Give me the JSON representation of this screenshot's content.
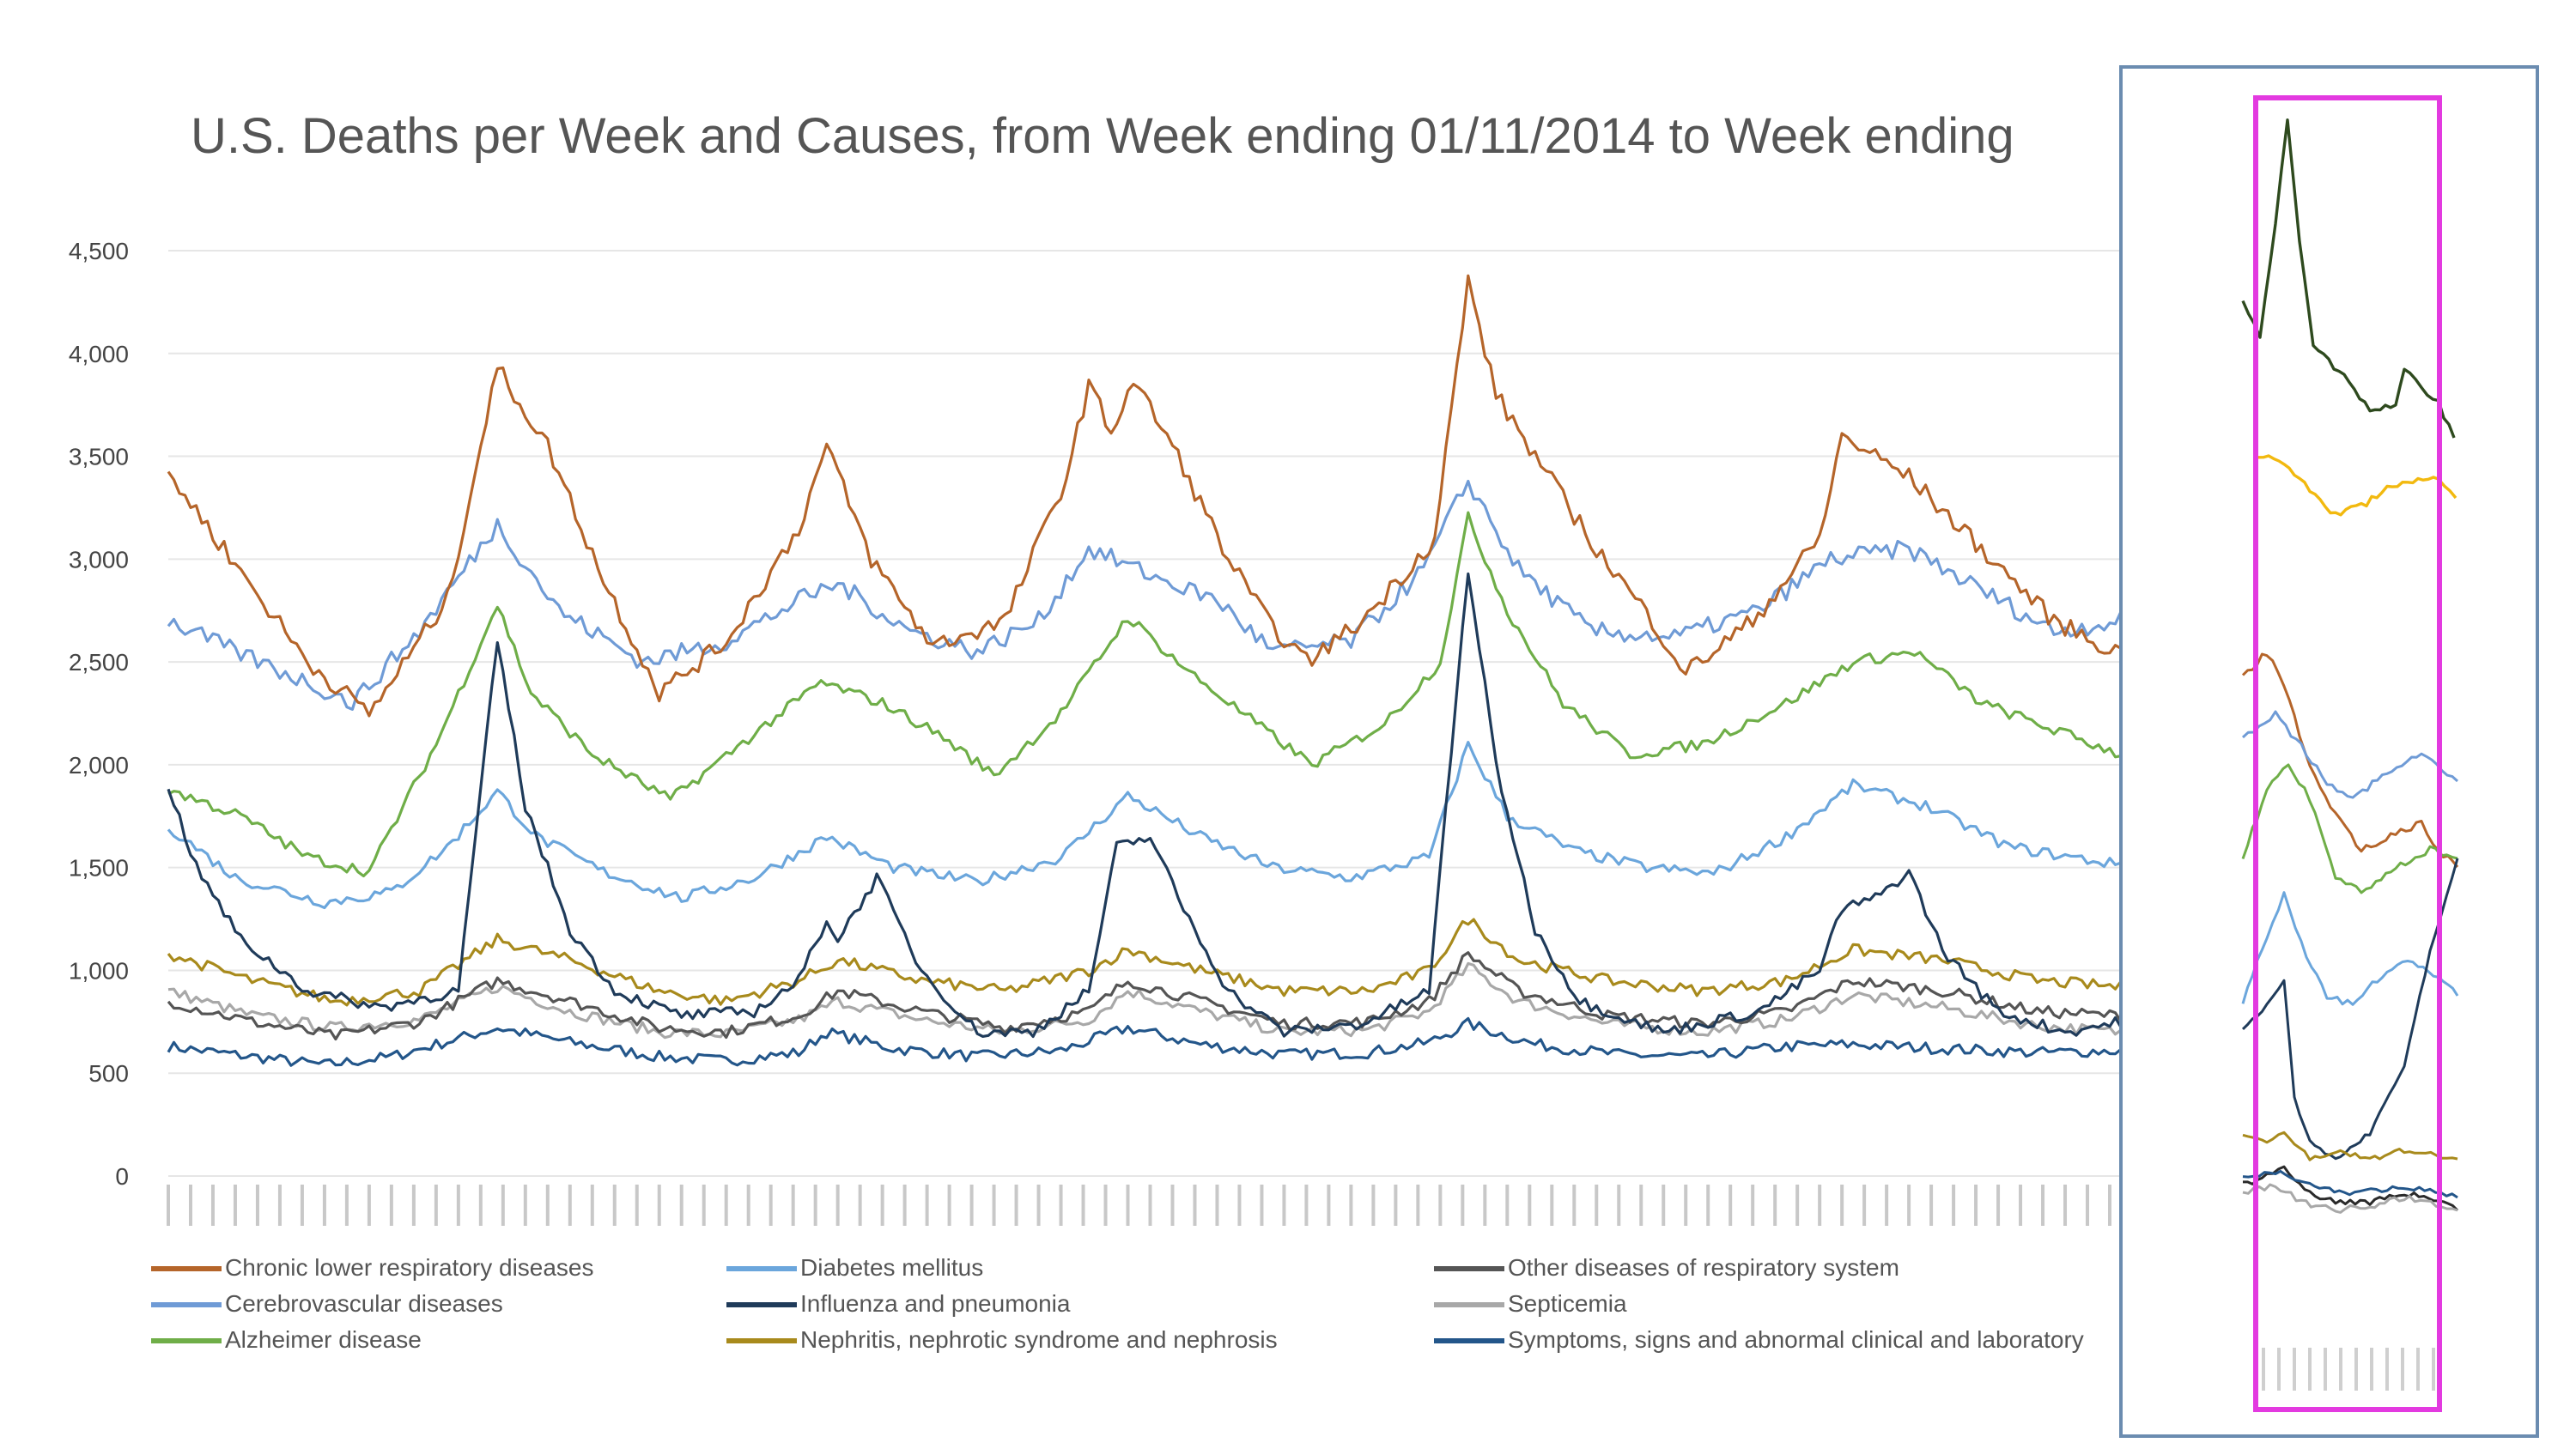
{
  "chart_data": {
    "type": "line",
    "title": "U.S. Deaths per Week and Causes, from Week ending 01/11/2014 to Week ending",
    "ylim": [
      0,
      4500
    ],
    "yticks": [
      0,
      500,
      1000,
      1500,
      2000,
      2500,
      3000,
      3500,
      4000,
      4500
    ],
    "ytick_labels": [
      "0",
      "500",
      "1,000",
      "1,500",
      "2,000",
      "2,500",
      "3,000",
      "3,500",
      "4,000",
      "4,500"
    ],
    "grid": true,
    "legend_position": "bottom",
    "colors": {
      "chronic": "#b5652a",
      "cerebro": "#6f9bd6",
      "alzheimer": "#6fae48",
      "diabetes": "#6ba6dc",
      "influenza": "#1f3b5a",
      "nephritis": "#a88a1c",
      "other_resp": "#555555",
      "septicemia": "#a8a8a8",
      "symptoms": "#23568a",
      "inset_green": "#2e4a1e",
      "inset_yellow": "#f2b90f",
      "highlight": "#e33ae0",
      "inset_frame": "#6b8cb0"
    },
    "series": [
      {
        "name": "Chronic lower respiratory diseases",
        "color": "#b5652a",
        "key_points": [
          [
            0,
            3420
          ],
          [
            13,
            2940
          ],
          [
            25,
            2500
          ],
          [
            36,
            2250
          ],
          [
            50,
            2800
          ],
          [
            59,
            3930
          ],
          [
            68,
            3550
          ],
          [
            78,
            2900
          ],
          [
            88,
            2350
          ],
          [
            100,
            2600
          ],
          [
            113,
            3150
          ],
          [
            118,
            3550
          ],
          [
            126,
            3000
          ],
          [
            137,
            2580
          ],
          [
            150,
            2700
          ],
          [
            161,
            3400
          ],
          [
            165,
            3850
          ],
          [
            169,
            3620
          ],
          [
            173,
            3870
          ],
          [
            180,
            3550
          ],
          [
            190,
            3000
          ],
          [
            197,
            2700
          ],
          [
            204,
            2500
          ],
          [
            214,
            2700
          ],
          [
            227,
            3100
          ],
          [
            233,
            4350
          ],
          [
            238,
            3800
          ],
          [
            245,
            3500
          ],
          [
            256,
            3050
          ],
          [
            266,
            2700
          ],
          [
            272,
            2450
          ],
          [
            284,
            2700
          ],
          [
            296,
            3100
          ],
          [
            300,
            3600
          ],
          [
            312,
            3400
          ],
          [
            325,
            3050
          ],
          [
            338,
            2700
          ],
          [
            349,
            2550
          ]
        ]
      },
      {
        "name": "Cerebrovascular diseases",
        "color": "#6f9bd6",
        "key_points": [
          [
            0,
            2700
          ],
          [
            12,
            2550
          ],
          [
            25,
            2400
          ],
          [
            33,
            2300
          ],
          [
            45,
            2650
          ],
          [
            59,
            3170
          ],
          [
            70,
            2750
          ],
          [
            85,
            2500
          ],
          [
            100,
            2600
          ],
          [
            113,
            2800
          ],
          [
            120,
            2880
          ],
          [
            133,
            2650
          ],
          [
            145,
            2550
          ],
          [
            156,
            2700
          ],
          [
            165,
            3050
          ],
          [
            178,
            2900
          ],
          [
            188,
            2800
          ],
          [
            198,
            2550
          ],
          [
            212,
            2600
          ],
          [
            225,
            2950
          ],
          [
            233,
            3380
          ],
          [
            242,
            2950
          ],
          [
            255,
            2650
          ],
          [
            270,
            2620
          ],
          [
            285,
            2750
          ],
          [
            298,
            3000
          ],
          [
            312,
            3050
          ],
          [
            325,
            2850
          ],
          [
            338,
            2650
          ],
          [
            350,
            2700
          ]
        ]
      },
      {
        "name": "Alzheimer disease",
        "color": "#6fae48",
        "key_points": [
          [
            0,
            1880
          ],
          [
            13,
            1750
          ],
          [
            25,
            1550
          ],
          [
            36,
            1480
          ],
          [
            48,
            2100
          ],
          [
            59,
            2780
          ],
          [
            65,
            2350
          ],
          [
            76,
            2050
          ],
          [
            90,
            1830
          ],
          [
            105,
            2150
          ],
          [
            117,
            2400
          ],
          [
            128,
            2300
          ],
          [
            138,
            2150
          ],
          [
            148,
            1950
          ],
          [
            160,
            2250
          ],
          [
            172,
            2720
          ],
          [
            183,
            2450
          ],
          [
            195,
            2200
          ],
          [
            205,
            2000
          ],
          [
            218,
            2200
          ],
          [
            228,
            2500
          ],
          [
            233,
            3200
          ],
          [
            240,
            2750
          ],
          [
            250,
            2300
          ],
          [
            262,
            2050
          ],
          [
            275,
            2100
          ],
          [
            290,
            2300
          ],
          [
            302,
            2500
          ],
          [
            313,
            2550
          ],
          [
            325,
            2300
          ],
          [
            340,
            2150
          ],
          [
            350,
            2050
          ]
        ]
      },
      {
        "name": "Diabetes mellitus",
        "color": "#6ba6dc",
        "key_points": [
          [
            0,
            1700
          ],
          [
            12,
            1450
          ],
          [
            28,
            1330
          ],
          [
            40,
            1380
          ],
          [
            50,
            1600
          ],
          [
            59,
            1870
          ],
          [
            66,
            1650
          ],
          [
            78,
            1480
          ],
          [
            92,
            1350
          ],
          [
            105,
            1450
          ],
          [
            118,
            1650
          ],
          [
            130,
            1500
          ],
          [
            145,
            1430
          ],
          [
            160,
            1550
          ],
          [
            172,
            1850
          ],
          [
            185,
            1650
          ],
          [
            198,
            1500
          ],
          [
            212,
            1450
          ],
          [
            226,
            1550
          ],
          [
            233,
            2100
          ],
          [
            240,
            1750
          ],
          [
            252,
            1580
          ],
          [
            265,
            1500
          ],
          [
            277,
            1470
          ],
          [
            290,
            1650
          ],
          [
            302,
            1900
          ],
          [
            315,
            1800
          ],
          [
            330,
            1600
          ],
          [
            348,
            1520
          ]
        ]
      },
      {
        "name": "Influenza and pneumonia",
        "color": "#1f3b5a",
        "key_points": [
          [
            0,
            1900
          ],
          [
            5,
            1500
          ],
          [
            13,
            1150
          ],
          [
            25,
            900
          ],
          [
            38,
            820
          ],
          [
            52,
            900
          ],
          [
            59,
            2600
          ],
          [
            64,
            1800
          ],
          [
            72,
            1200
          ],
          [
            80,
            900
          ],
          [
            92,
            780
          ],
          [
            105,
            800
          ],
          [
            113,
            950
          ],
          [
            118,
            1250
          ],
          [
            120,
            1150
          ],
          [
            127,
            1450
          ],
          [
            135,
            1000
          ],
          [
            145,
            700
          ],
          [
            155,
            700
          ],
          [
            165,
            900
          ],
          [
            170,
            1600
          ],
          [
            176,
            1650
          ],
          [
            182,
            1300
          ],
          [
            190,
            900
          ],
          [
            200,
            700
          ],
          [
            214,
            740
          ],
          [
            226,
            900
          ],
          [
            233,
            2950
          ],
          [
            238,
            2000
          ],
          [
            245,
            1200
          ],
          [
            253,
            850
          ],
          [
            268,
            700
          ],
          [
            285,
            800
          ],
          [
            296,
            1000
          ],
          [
            300,
            1300
          ],
          [
            306,
            1350
          ],
          [
            312,
            1480
          ],
          [
            318,
            1100
          ],
          [
            328,
            800
          ],
          [
            340,
            700
          ],
          [
            350,
            750
          ]
        ]
      },
      {
        "name": "Nephritis, nephrotic syndrome and nephrosis",
        "color": "#a88a1c",
        "key_points": [
          [
            0,
            1080
          ],
          [
            15,
            950
          ],
          [
            30,
            850
          ],
          [
            45,
            900
          ],
          [
            59,
            1150
          ],
          [
            72,
            1050
          ],
          [
            88,
            900
          ],
          [
            100,
            850
          ],
          [
            113,
            950
          ],
          [
            120,
            1050
          ],
          [
            135,
            950
          ],
          [
            150,
            900
          ],
          [
            165,
            1000
          ],
          [
            172,
            1100
          ],
          [
            185,
            1000
          ],
          [
            200,
            900
          ],
          [
            215,
            900
          ],
          [
            226,
            1000
          ],
          [
            233,
            1250
          ],
          [
            242,
            1050
          ],
          [
            258,
            950
          ],
          [
            275,
            900
          ],
          [
            290,
            950
          ],
          [
            302,
            1100
          ],
          [
            318,
            1050
          ],
          [
            335,
            950
          ],
          [
            350,
            920
          ]
        ]
      },
      {
        "name": "Other diseases of respiratory system",
        "color": "#555555",
        "key_points": [
          [
            0,
            850
          ],
          [
            15,
            750
          ],
          [
            30,
            680
          ],
          [
            45,
            750
          ],
          [
            59,
            950
          ],
          [
            72,
            850
          ],
          [
            88,
            720
          ],
          [
            100,
            700
          ],
          [
            113,
            780
          ],
          [
            120,
            900
          ],
          [
            135,
            800
          ],
          [
            150,
            720
          ],
          [
            165,
            800
          ],
          [
            172,
            950
          ],
          [
            185,
            850
          ],
          [
            200,
            740
          ],
          [
            215,
            750
          ],
          [
            226,
            850
          ],
          [
            233,
            1080
          ],
          [
            242,
            900
          ],
          [
            258,
            780
          ],
          [
            275,
            740
          ],
          [
            290,
            800
          ],
          [
            302,
            950
          ],
          [
            318,
            900
          ],
          [
            335,
            800
          ],
          [
            350,
            780
          ]
        ]
      },
      {
        "name": "Septicemia",
        "color": "#a8a8a8",
        "key_points": [
          [
            0,
            900
          ],
          [
            15,
            780
          ],
          [
            30,
            720
          ],
          [
            45,
            760
          ],
          [
            59,
            920
          ],
          [
            72,
            800
          ],
          [
            88,
            700
          ],
          [
            100,
            690
          ],
          [
            113,
            760
          ],
          [
            120,
            850
          ],
          [
            135,
            760
          ],
          [
            150,
            700
          ],
          [
            165,
            760
          ],
          [
            172,
            900
          ],
          [
            185,
            800
          ],
          [
            200,
            700
          ],
          [
            215,
            710
          ],
          [
            226,
            800
          ],
          [
            233,
            1020
          ],
          [
            242,
            850
          ],
          [
            258,
            740
          ],
          [
            275,
            700
          ],
          [
            290,
            760
          ],
          [
            302,
            880
          ],
          [
            318,
            820
          ],
          [
            335,
            730
          ],
          [
            350,
            700
          ]
        ]
      },
      {
        "name": "Symptoms, signs and abnormal clinical and laboratory",
        "color": "#23568a",
        "key_points": [
          [
            0,
            630
          ],
          [
            15,
            580
          ],
          [
            28,
            540
          ],
          [
            40,
            580
          ],
          [
            59,
            720
          ],
          [
            72,
            650
          ],
          [
            88,
            580
          ],
          [
            100,
            560
          ],
          [
            113,
            600
          ],
          [
            118,
            700
          ],
          [
            130,
            620
          ],
          [
            145,
            580
          ],
          [
            160,
            610
          ],
          [
            172,
            720
          ],
          [
            185,
            640
          ],
          [
            200,
            590
          ],
          [
            215,
            600
          ],
          [
            226,
            650
          ],
          [
            233,
            740
          ],
          [
            245,
            640
          ],
          [
            260,
            590
          ],
          [
            275,
            580
          ],
          [
            290,
            630
          ],
          [
            302,
            640
          ],
          [
            318,
            620
          ],
          [
            335,
            600
          ],
          [
            350,
            610
          ]
        ]
      }
    ],
    "legend": [
      "Chronic lower respiratory diseases",
      "Cerebrovascular diseases",
      "Alzheimer disease",
      "Diabetes mellitus",
      "Influenza and pneumonia",
      "Nephritis, nephrotic syndrome and nephrosis",
      "Other diseases of respiratory system",
      "Septicemia",
      "Symptoms, signs and abnormal clinical and laboratory"
    ]
  }
}
